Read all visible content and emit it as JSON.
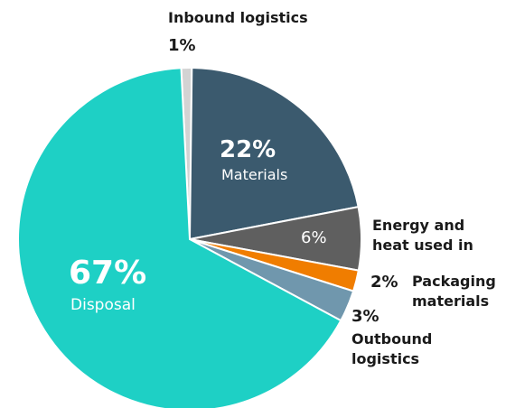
{
  "chart_data": {
    "type": "pie",
    "slices": [
      {
        "label": "Inbound logistics",
        "value": 1,
        "pct_text": "1%",
        "color": "#d3d3d3"
      },
      {
        "label": "Materials",
        "value": 22,
        "pct_text": "22%",
        "color": "#3b5a6e"
      },
      {
        "label": "Energy and heat used in",
        "value": 6,
        "pct_text": "6%",
        "color": "#5f5f5f"
      },
      {
        "label": "Packaging materials",
        "value": 2,
        "pct_text": "2%",
        "color": "#f07d00"
      },
      {
        "label": "Outbound logistics",
        "value": 3,
        "pct_text": "3%",
        "color": "#7097ad"
      },
      {
        "label": "Disposal",
        "value": 67,
        "pct_text": "67%",
        "color": "#1ed0c5"
      }
    ]
  },
  "labels": {
    "inbound_name": "Inbound logistics",
    "inbound_pct": "1%",
    "materials_pct": "22%",
    "materials_name": "Materials",
    "energy_pct": "6%",
    "energy_name_1": "Energy and",
    "energy_name_2": "heat used in",
    "packaging_pct": "2%",
    "packaging_name_1": "Packaging",
    "packaging_name_2": "materials",
    "outbound_pct": "3%",
    "outbound_name_1": "Outbound",
    "outbound_name_2": "logistics",
    "disposal_pct": "67%",
    "disposal_name": "Disposal"
  }
}
